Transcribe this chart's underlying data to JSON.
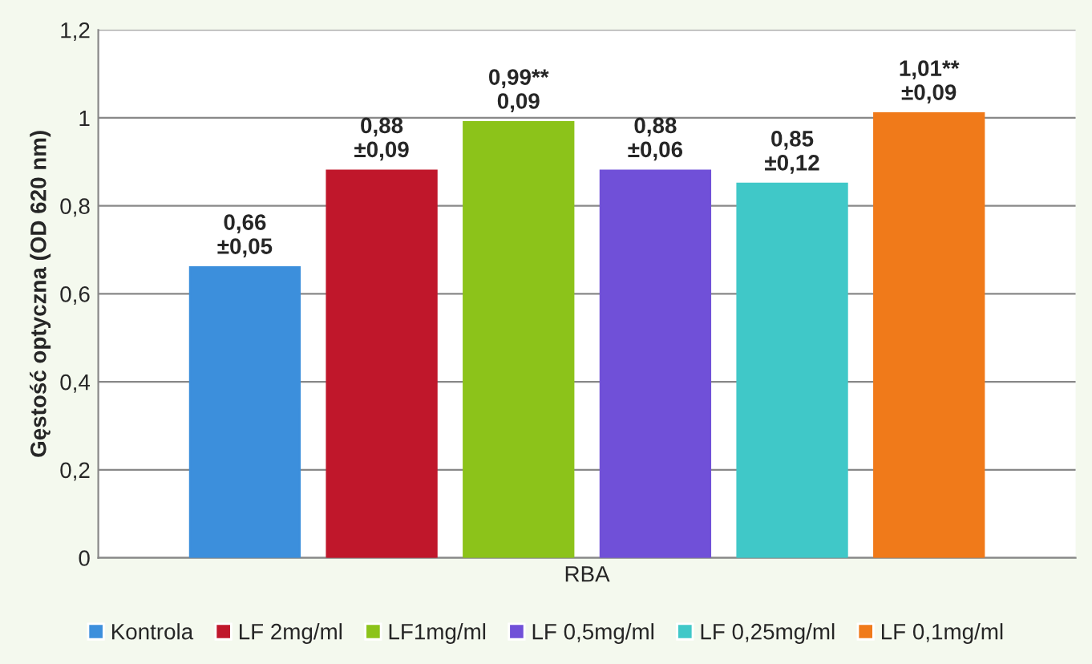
{
  "chart_data": {
    "type": "bar",
    "ylabel": "Gęstość optyczna (OD 620 nm)",
    "categories": [
      "RBA"
    ],
    "series": [
      {
        "name": "Kontrola",
        "color": "#3c8fdc",
        "values": [
          0.66
        ],
        "value_labels": [
          "0,66\n±0,05"
        ]
      },
      {
        "name": "LF 2mg/ml",
        "color": "#c0172b",
        "values": [
          0.88
        ],
        "value_labels": [
          "0,88\n±0,09"
        ]
      },
      {
        "name": "LF1mg/ml",
        "color": "#8cc31a",
        "values": [
          0.99
        ],
        "value_labels": [
          "0,99**\n0,09"
        ]
      },
      {
        "name": "LF 0,5mg/ml",
        "color": "#7050d8",
        "values": [
          0.88
        ],
        "value_labels": [
          "0,88\n±0,06"
        ]
      },
      {
        "name": "LF 0,25mg/ml",
        "color": "#40c8c8",
        "values": [
          0.85
        ],
        "value_labels": [
          "0,85\n±0,12"
        ]
      },
      {
        "name": "LF 0,1mg/ml",
        "color": "#f07a1a",
        "values": [
          1.01
        ],
        "value_labels": [
          "1,01**\n±0,09"
        ]
      }
    ],
    "ylim": [
      0,
      1.2
    ],
    "yticks": [
      0,
      {
        "value": 0.2,
        "label": "0,2"
      },
      {
        "value": 0.4,
        "label": "0,4"
      },
      {
        "value": 0.6,
        "label": "0,6"
      },
      {
        "value": 0.8,
        "label": "0,8"
      },
      1,
      {
        "value": 1.2,
        "label": "1,2"
      }
    ],
    "grid": "y",
    "legend": "bottom"
  }
}
